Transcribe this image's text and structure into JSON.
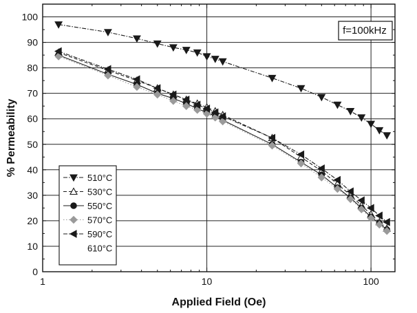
{
  "chart_data": {
    "type": "line",
    "xlabel": "Applied Field (Oe)",
    "ylabel": "% Permeability",
    "xscale": "log",
    "xlim": [
      1,
      140
    ],
    "ylim": [
      0,
      105
    ],
    "x_ticks": [
      1,
      10,
      100
    ],
    "x_tick_labels": [
      "1",
      "10",
      "100"
    ],
    "y_ticks": [
      0,
      10,
      20,
      30,
      40,
      50,
      60,
      70,
      80,
      90,
      100
    ],
    "grid": true,
    "grid_x": [
      10,
      100
    ],
    "grid_y": [
      10,
      20,
      30,
      40,
      50,
      60,
      70,
      80,
      90,
      100
    ],
    "legend_position": "bottom-left",
    "annotation": "f=100kHz",
    "series": [
      {
        "name": "510°C",
        "marker": "triangle-down",
        "filled": true,
        "line": "dash-dot",
        "color": "#1a1a1a",
        "x": [
          1.25,
          2.5,
          3.75,
          5,
          6.25,
          7.5,
          8.75,
          10,
          11.25,
          12.5,
          25,
          37.5,
          50,
          62.5,
          75,
          87.5,
          100,
          112.5,
          125
        ],
        "y": [
          97,
          94,
          91.5,
          89.5,
          88,
          87,
          86,
          84.5,
          83.5,
          82.5,
          76,
          72,
          68.5,
          65.5,
          63,
          60.5,
          58,
          55.5,
          53.5
        ]
      },
      {
        "name": "530°C",
        "marker": "triangle-up",
        "filled": false,
        "line": "dash",
        "color": "#1a1a1a",
        "x": [
          1.25,
          2.5,
          3.75,
          5,
          6.25,
          7.5,
          8.75,
          10,
          11.25,
          12.5,
          25,
          37.5,
          50,
          62.5,
          75,
          87.5,
          100,
          112.5,
          125
        ],
        "y": [
          86,
          79,
          75,
          72,
          69.5,
          67.5,
          66,
          64.5,
          63,
          61.5,
          52.5,
          45,
          39.5,
          34.5,
          30,
          26,
          22.5,
          19.5,
          17
        ]
      },
      {
        "name": "550°C",
        "marker": "circle",
        "filled": true,
        "line": "solid",
        "color": "#1a1a1a",
        "x": [
          1.25,
          2.5,
          3.75,
          5,
          6.25,
          7.5,
          8.75,
          10,
          11.25,
          12.5,
          25,
          37.5,
          50,
          62.5,
          75,
          87.5,
          100,
          112.5,
          125
        ],
        "y": [
          85,
          77.5,
          73.5,
          70,
          68,
          66,
          64,
          62.5,
          61,
          59.5,
          50,
          43,
          38,
          33,
          29,
          25,
          21.5,
          19,
          16.5
        ]
      },
      {
        "name": "570°C",
        "marker": "diamond",
        "filled": true,
        "line": "dot",
        "color": "#9a9a9a",
        "x": [
          1.25,
          2.5,
          3.75,
          5,
          6.25,
          7.5,
          8.75,
          10,
          11.25,
          12.5,
          25,
          37.5,
          50,
          62.5,
          75,
          87.5,
          100,
          112.5,
          125
        ],
        "y": [
          84.5,
          77,
          72.5,
          69.5,
          67,
          65,
          63.5,
          62,
          60.5,
          59,
          49.5,
          42.5,
          37,
          32.5,
          28.5,
          24.5,
          21,
          18.5,
          16
        ]
      },
      {
        "name": "590°C",
        "marker": "triangle-left",
        "filled": true,
        "line": "dash-dot",
        "color": "#1a1a1a",
        "x": [
          1.25,
          2.5,
          3.75,
          5,
          6.25,
          7.5,
          8.75,
          10,
          11.25,
          12.5,
          25,
          37.5,
          50,
          62.5,
          75,
          87.5,
          100,
          112.5,
          125
        ],
        "y": [
          86.5,
          79.5,
          75.5,
          72,
          69.5,
          67.5,
          65.5,
          64,
          62.5,
          61,
          52.5,
          46,
          40.5,
          36,
          31.5,
          28,
          25,
          22,
          19.5
        ]
      },
      {
        "name": "610°C",
        "marker": "none",
        "filled": false,
        "line": "solid",
        "color": "#1a1a1a",
        "x": [],
        "y": []
      }
    ]
  }
}
